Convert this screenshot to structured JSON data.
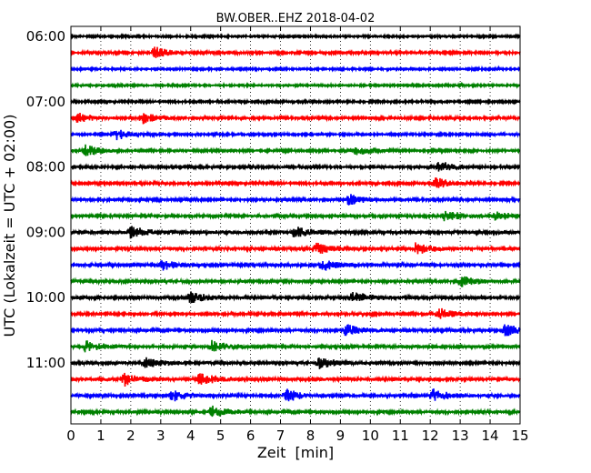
{
  "chart_data": {
    "type": "line",
    "title": "BW.OBER..EHZ 2018-04-02",
    "xlabel": "Zeit  [min]",
    "ylabel": "UTC (Lokalzeit = UTC + 02:00)",
    "xlim": [
      0,
      15
    ],
    "x_ticks": [
      "0",
      "1",
      "2",
      "3",
      "4",
      "5",
      "6",
      "7",
      "8",
      "9",
      "10",
      "11",
      "12",
      "13",
      "14",
      "15"
    ],
    "y_ticks": [
      "06:00",
      "07:00",
      "08:00",
      "09:00",
      "10:00",
      "11:00"
    ],
    "grid": "vertical dotted",
    "start_time": "06:00",
    "trace_interval_minutes": 15,
    "trace_colors": [
      "#000000",
      "#ff0000",
      "#0000ff",
      "#008000"
    ],
    "series": [
      {
        "start": "06:00",
        "events_min": [],
        "amp": 1.0
      },
      {
        "start": "06:15",
        "events_min": [
          2.8
        ],
        "amp": 1.2
      },
      {
        "start": "06:30",
        "events_min": [],
        "amp": 1.0
      },
      {
        "start": "06:45",
        "events_min": [],
        "amp": 1.0
      },
      {
        "start": "07:00",
        "events_min": [],
        "amp": 1.1
      },
      {
        "start": "07:15",
        "events_min": [
          0.2,
          2.4
        ],
        "amp": 1.3
      },
      {
        "start": "07:30",
        "events_min": [
          1.5
        ],
        "amp": 1.1
      },
      {
        "start": "07:45",
        "events_min": [
          0.5,
          9.5
        ],
        "amp": 1.2
      },
      {
        "start": "08:00",
        "events_min": [
          12.3
        ],
        "amp": 1.3
      },
      {
        "start": "08:15",
        "events_min": [
          12.2
        ],
        "amp": 1.2
      },
      {
        "start": "08:30",
        "events_min": [
          9.3
        ],
        "amp": 1.4
      },
      {
        "start": "08:45",
        "events_min": [
          12.5,
          14.2
        ],
        "amp": 1.4
      },
      {
        "start": "09:00",
        "events_min": [
          2.0,
          7.5
        ],
        "amp": 1.8
      },
      {
        "start": "09:15",
        "events_min": [
          8.2,
          11.5
        ],
        "amp": 1.6
      },
      {
        "start": "09:30",
        "events_min": [
          3.0,
          8.4
        ],
        "amp": 1.5
      },
      {
        "start": "09:45",
        "events_min": [
          13.0
        ],
        "amp": 1.5
      },
      {
        "start": "10:00",
        "events_min": [
          4.0,
          9.4
        ],
        "amp": 1.7
      },
      {
        "start": "10:15",
        "events_min": [
          12.3
        ],
        "amp": 1.3
      },
      {
        "start": "10:30",
        "events_min": [
          9.2,
          14.5
        ],
        "amp": 1.5
      },
      {
        "start": "10:45",
        "events_min": [
          0.5,
          4.7
        ],
        "amp": 1.6
      },
      {
        "start": "11:00",
        "events_min": [
          2.5,
          8.3
        ],
        "amp": 1.6
      },
      {
        "start": "11:15",
        "events_min": [
          1.8,
          4.3
        ],
        "amp": 1.8
      },
      {
        "start": "11:30",
        "events_min": [
          3.4,
          7.2,
          12.1
        ],
        "amp": 1.6
      },
      {
        "start": "11:45",
        "events_min": [
          4.7
        ],
        "amp": 1.5
      }
    ]
  }
}
